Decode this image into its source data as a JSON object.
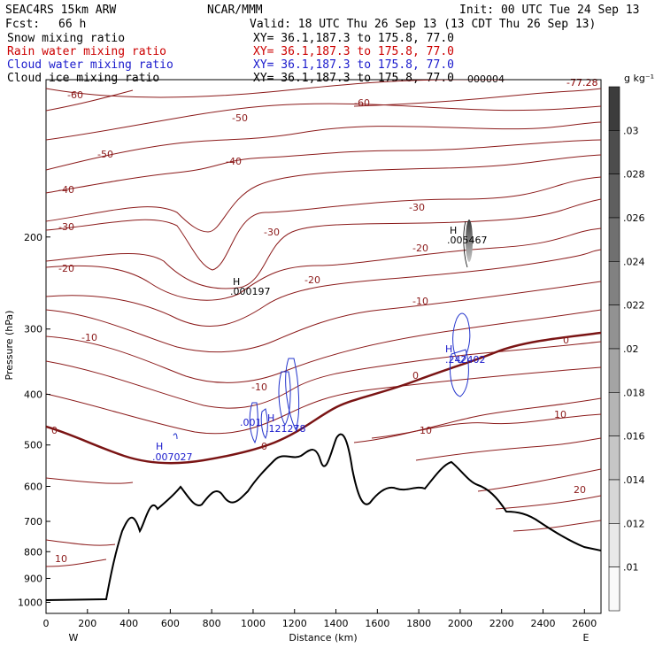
{
  "header": {
    "model": "SEAC4RS 15km ARW",
    "center": "NCAR/MMM",
    "init": "Init: 00 UTC Tue 24 Sep 13",
    "fcst_label": "Fcst:",
    "fcst_value": "66 h",
    "valid": "Valid: 18 UTC Thu 26 Sep 13 (13 CDT Thu 26 Sep 13)",
    "fields": [
      {
        "name": "Snow mixing ratio",
        "xy": "XY=  36.1,187.3 to 175.8, 77.0",
        "color": "#000000"
      },
      {
        "name": "Rain water mixing ratio",
        "xy": "XY=  36.1,187.3 to 175.8, 77.0",
        "color": "#cc0000"
      },
      {
        "name": "Cloud water mixing ratio",
        "xy": "XY=  36.1,187.3 to 175.8, 77.0",
        "color": "#1a1acc"
      },
      {
        "name": "Cloud ice mixing ratio",
        "xy": "XY=  36.1,187.3 to 175.8, 77.0",
        "color": "#000000"
      }
    ],
    "tail_value": "000004",
    "top_right_value": "-77.28"
  },
  "chart_data": {
    "type": "contour",
    "xlabel": "Distance (km)",
    "ylabel": "Pressure (hPa)",
    "xlim": [
      0,
      2680
    ],
    "ylim": [
      1050,
      100
    ],
    "x_ticks": [
      "0",
      "200",
      "400",
      "600",
      "800",
      "1000",
      "1200",
      "1400",
      "1600",
      "1800",
      "2000",
      "2200",
      "2400",
      "2600"
    ],
    "y_ticks": [
      "200",
      "300",
      "400",
      "500",
      "600",
      "700",
      "800",
      "900",
      "1000"
    ],
    "x_end_labels": {
      "left": "W",
      "right": "E"
    },
    "temperature_contour_labels": [
      "-60",
      "-50",
      "-40",
      "-30",
      "-20",
      "-10",
      "0",
      "10",
      "20"
    ],
    "maxima": [
      {
        "marker": "H",
        "value": ".000197",
        "field": "cloud ice"
      },
      {
        "marker": "H",
        "value": ".005467",
        "field": "snow"
      },
      {
        "marker": "H",
        "value": ".121278",
        "field": "cloud water"
      },
      {
        "marker": "H",
        "value": ".242402",
        "field": "cloud water"
      },
      {
        "marker": "H",
        "value": ".007027",
        "field": "cloud water"
      }
    ],
    "other_labels": [
      ".001"
    ],
    "colorbar": {
      "unit": "g kg⁻¹",
      "ticks": [
        ".03",
        ".028",
        ".026",
        ".024",
        ".022",
        ".02",
        ".018",
        ".016",
        ".014",
        ".012",
        ".01"
      ]
    }
  }
}
